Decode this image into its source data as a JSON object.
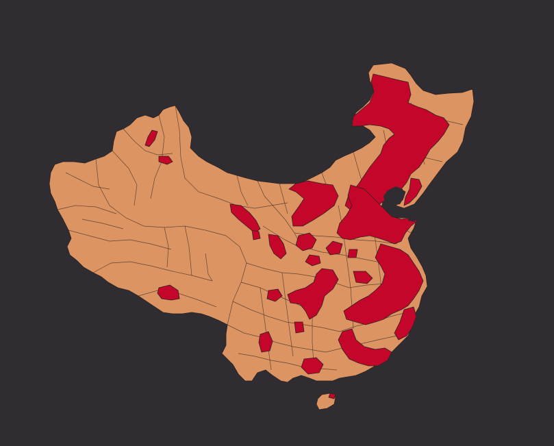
{
  "map": {
    "background": "#2f2d31",
    "base_fill": "#dc9462",
    "highlight_fill": "#c4062a",
    "border_color": "#2b2222"
  }
}
